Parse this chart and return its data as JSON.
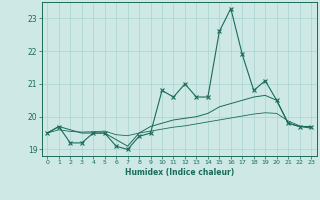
{
  "xlabel": "Humidex (Indice chaleur)",
  "bg_color": "#cde8e5",
  "grid_color": "#a8d4d0",
  "line_color": "#1a6b5a",
  "x_values": [
    0,
    1,
    2,
    3,
    4,
    5,
    6,
    7,
    8,
    9,
    10,
    11,
    12,
    13,
    14,
    15,
    16,
    17,
    18,
    19,
    20,
    21,
    22,
    23
  ],
  "series1": [
    19.5,
    19.7,
    19.2,
    19.2,
    19.5,
    19.5,
    19.1,
    19.0,
    19.4,
    19.5,
    20.8,
    20.6,
    21.0,
    20.6,
    20.6,
    22.6,
    23.3,
    21.9,
    20.8,
    21.1,
    20.5,
    19.8,
    19.7,
    19.7
  ],
  "series2": [
    19.5,
    19.7,
    19.6,
    19.5,
    19.5,
    19.5,
    19.3,
    19.1,
    19.5,
    19.7,
    19.8,
    19.9,
    19.95,
    20.0,
    20.1,
    20.3,
    20.4,
    20.5,
    20.6,
    20.65,
    20.5,
    19.8,
    19.7,
    19.65
  ],
  "series3": [
    19.5,
    19.6,
    19.55,
    19.53,
    19.54,
    19.56,
    19.45,
    19.42,
    19.5,
    19.56,
    19.62,
    19.68,
    19.72,
    19.78,
    19.84,
    19.9,
    19.96,
    20.02,
    20.08,
    20.12,
    20.1,
    19.87,
    19.72,
    19.67
  ],
  "ylim": [
    18.8,
    23.5
  ],
  "xlim": [
    -0.5,
    23.5
  ],
  "yticks": [
    19,
    20,
    21,
    22,
    23
  ]
}
